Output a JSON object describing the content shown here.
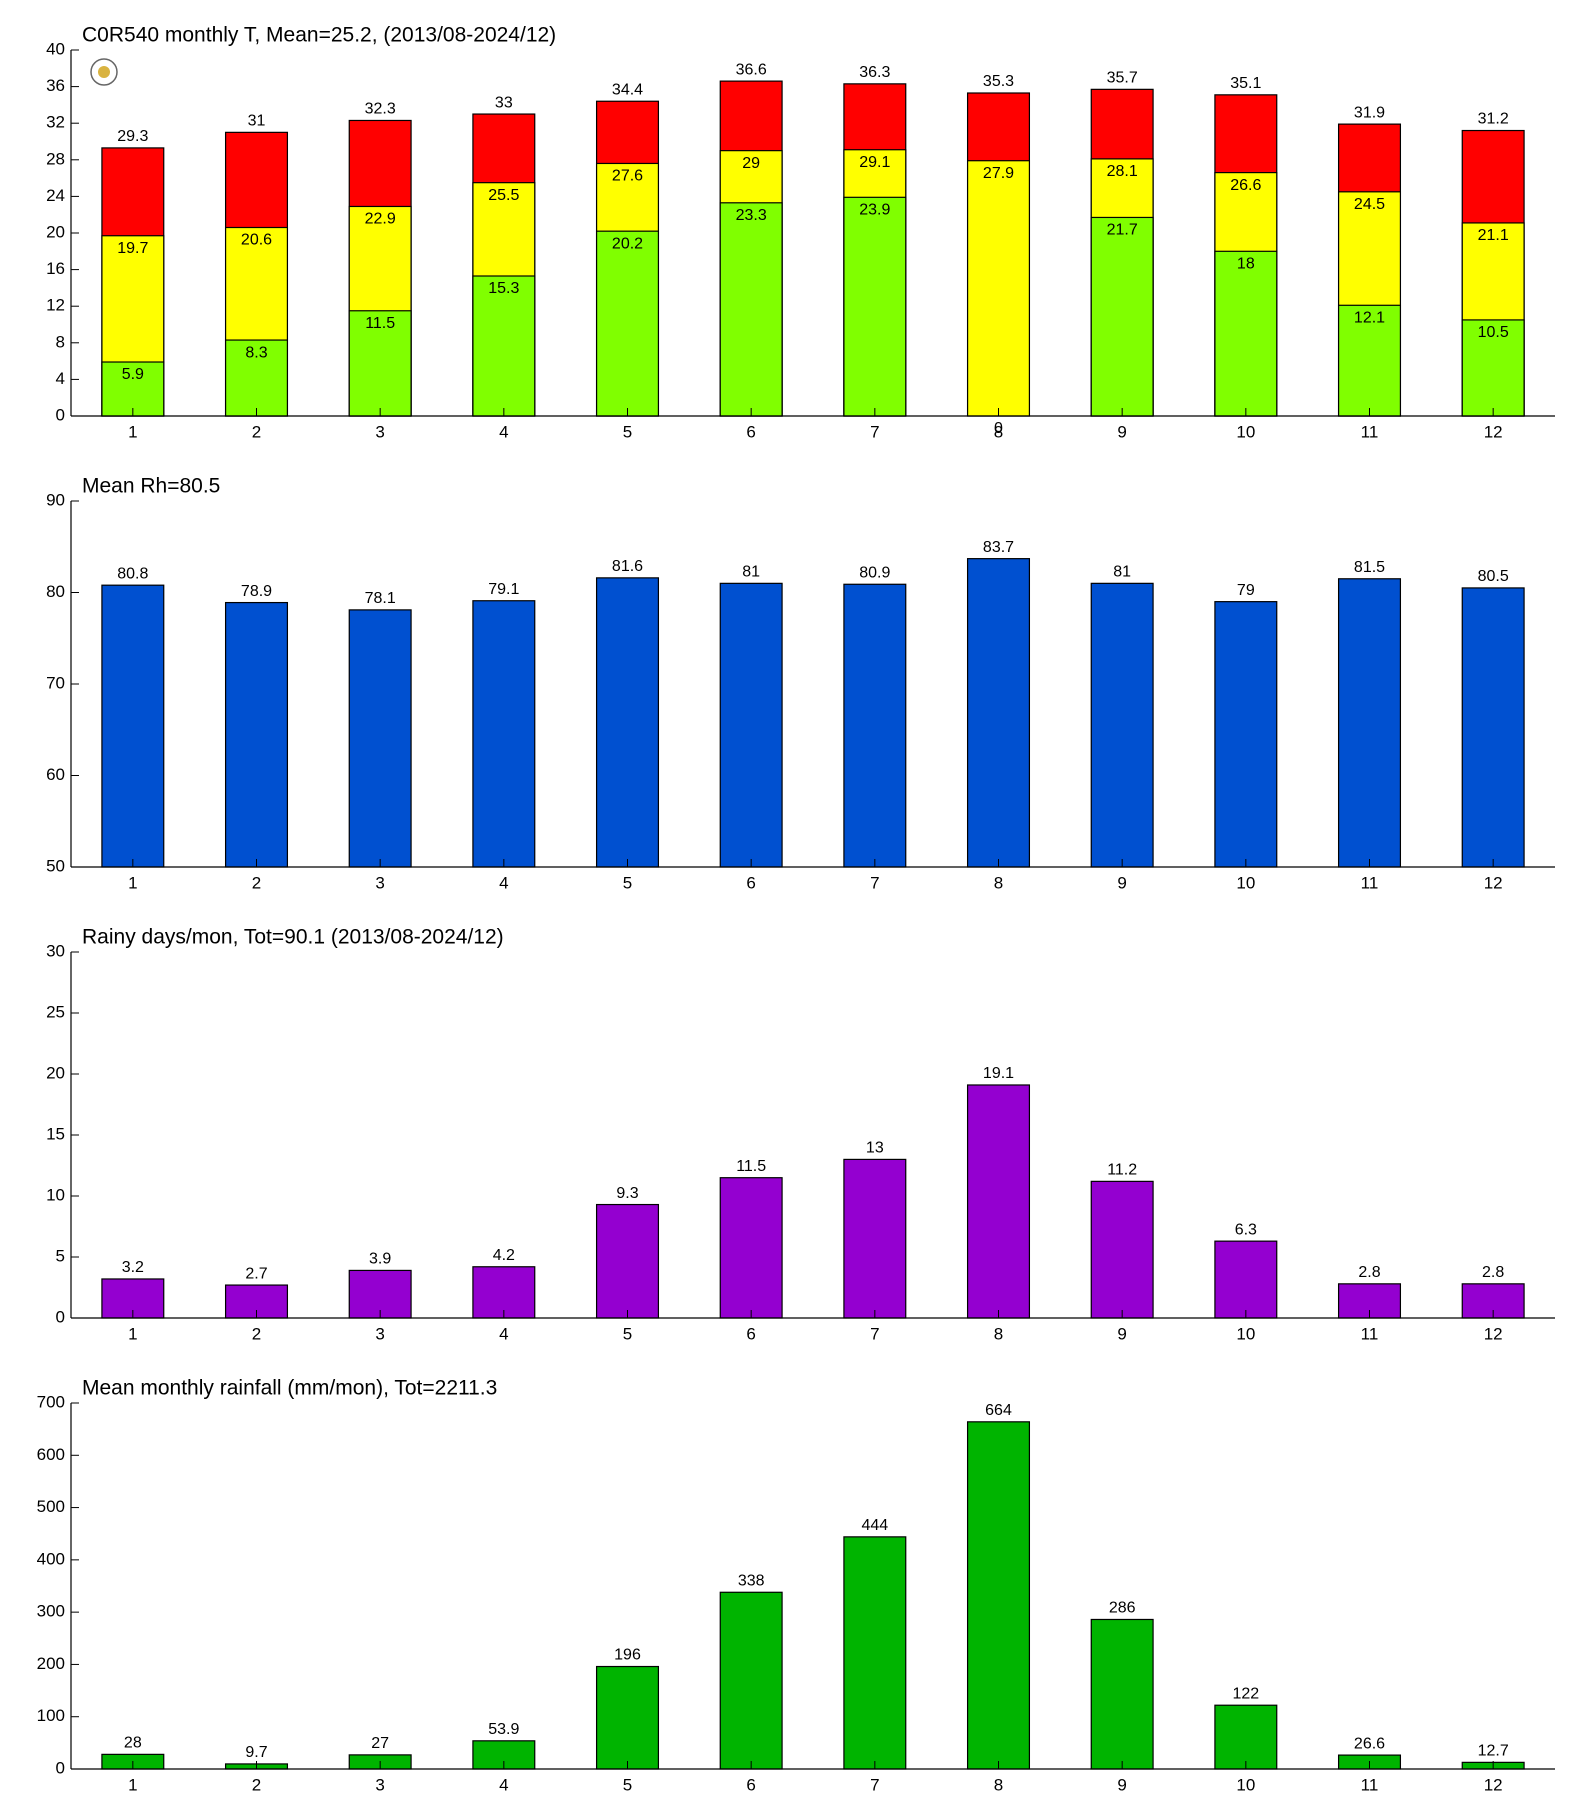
{
  "chart_data": [
    {
      "type": "bar",
      "title": "C0R540 monthly T, Mean=25.2, (2013/08-2024/12)",
      "categories": [
        "1",
        "2",
        "3",
        "4",
        "5",
        "6",
        "7",
        "8",
        "9",
        "10",
        "11",
        "12"
      ],
      "series": [
        {
          "color": "#ff0000",
          "values": [
            29.3,
            31,
            32.3,
            33,
            34.4,
            36.6,
            36.3,
            35.3,
            35.7,
            35.1,
            31.9,
            31.2
          ]
        },
        {
          "color": "#ffff00",
          "values": [
            19.7,
            20.6,
            22.9,
            25.5,
            27.6,
            29,
            29.1,
            27.9,
            28.1,
            26.6,
            24.5,
            21.1
          ]
        },
        {
          "color": "#80ff00",
          "values": [
            5.9,
            8.3,
            11.5,
            15.3,
            20.2,
            23.3,
            23.9,
            0,
            21.7,
            18,
            12.1,
            10.5
          ]
        }
      ],
      "ylim": [
        0,
        40
      ],
      "yticks": [
        0,
        4,
        8,
        12,
        16,
        20,
        24,
        28,
        32,
        36,
        40
      ]
    },
    {
      "type": "bar",
      "title": "Mean Rh=80.5",
      "categories": [
        "1",
        "2",
        "3",
        "4",
        "5",
        "6",
        "7",
        "8",
        "9",
        "10",
        "11",
        "12"
      ],
      "series": [
        {
          "color": "#0050d0",
          "values": [
            80.8,
            78.9,
            78.1,
            79.1,
            81.6,
            81,
            80.9,
            83.7,
            81,
            79,
            81.5,
            80.5
          ]
        }
      ],
      "ylim": [
        50,
        90
      ],
      "yticks": [
        50,
        60,
        70,
        80,
        90
      ]
    },
    {
      "type": "bar",
      "title": "Rainy days/mon, Tot=90.1 (2013/08-2024/12)",
      "categories": [
        "1",
        "2",
        "3",
        "4",
        "5",
        "6",
        "7",
        "8",
        "9",
        "10",
        "11",
        "12"
      ],
      "series": [
        {
          "color": "#9400d0",
          "values": [
            3.2,
            2.7,
            3.9,
            4.2,
            9.3,
            11.5,
            13,
            19.1,
            11.2,
            6.3,
            2.8,
            2.8
          ]
        }
      ],
      "ylim": [
        0,
        30
      ],
      "yticks": [
        0,
        5,
        10,
        15,
        20,
        25,
        30
      ]
    },
    {
      "type": "bar",
      "title": "Mean monthly rainfall (mm/mon), Tot=2211.3",
      "categories": [
        "1",
        "2",
        "3",
        "4",
        "5",
        "6",
        "7",
        "8",
        "9",
        "10",
        "11",
        "12"
      ],
      "series": [
        {
          "color": "#00b400",
          "values": [
            28,
            9.7,
            27,
            53.9,
            196,
            338,
            444,
            664,
            286,
            122,
            26.6,
            12.7
          ]
        }
      ],
      "ylim": [
        0,
        700
      ],
      "yticks": [
        0,
        100,
        200,
        300,
        400,
        500,
        600,
        700
      ]
    }
  ]
}
